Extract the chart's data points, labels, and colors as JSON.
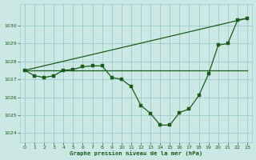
{
  "xlabel": "Graphe pression niveau de la mer (hPa)",
  "bg_color": "#cce8e4",
  "grid_color": "#99cccc",
  "line_color": "#1a5c1a",
  "ylim": [
    1023.5,
    1031.2
  ],
  "xlim": [
    -0.5,
    23.5
  ],
  "yticks": [
    1024,
    1025,
    1026,
    1027,
    1028,
    1029,
    1030
  ],
  "xticks": [
    0,
    1,
    2,
    3,
    4,
    5,
    6,
    7,
    8,
    9,
    10,
    11,
    12,
    13,
    14,
    15,
    16,
    17,
    18,
    19,
    20,
    21,
    22,
    23
  ],
  "series_main": {
    "x": [
      0,
      1,
      2,
      3,
      4,
      5,
      6,
      7,
      8,
      9,
      10,
      11,
      12,
      13,
      14,
      15,
      16,
      17,
      18,
      19,
      20,
      21,
      22,
      23
    ],
    "y": [
      1027.5,
      1027.2,
      1027.1,
      1027.2,
      1027.5,
      1027.55,
      1027.7,
      1027.75,
      1027.75,
      1027.1,
      1027.0,
      1026.6,
      1025.55,
      1025.1,
      1024.45,
      1024.45,
      1025.15,
      1025.35,
      1026.1,
      1027.3,
      1028.9,
      1029.0,
      1030.3,
      1030.4
    ]
  },
  "series_diag": {
    "x": [
      0,
      23
    ],
    "y": [
      1027.5,
      1030.4
    ]
  },
  "series_flat": {
    "x": [
      0,
      1,
      2,
      3,
      4,
      5,
      6,
      7,
      8,
      9,
      10,
      11,
      12,
      13,
      14,
      15,
      16,
      17,
      18,
      19,
      20,
      21,
      22,
      23
    ],
    "y": [
      1027.5,
      1027.5,
      1027.5,
      1027.5,
      1027.5,
      1027.5,
      1027.5,
      1027.5,
      1027.5,
      1027.5,
      1027.5,
      1027.5,
      1027.5,
      1027.5,
      1027.5,
      1027.5,
      1027.5,
      1027.5,
      1027.5,
      1027.5,
      1027.5,
      1027.5,
      1027.5,
      1027.5
    ]
  }
}
